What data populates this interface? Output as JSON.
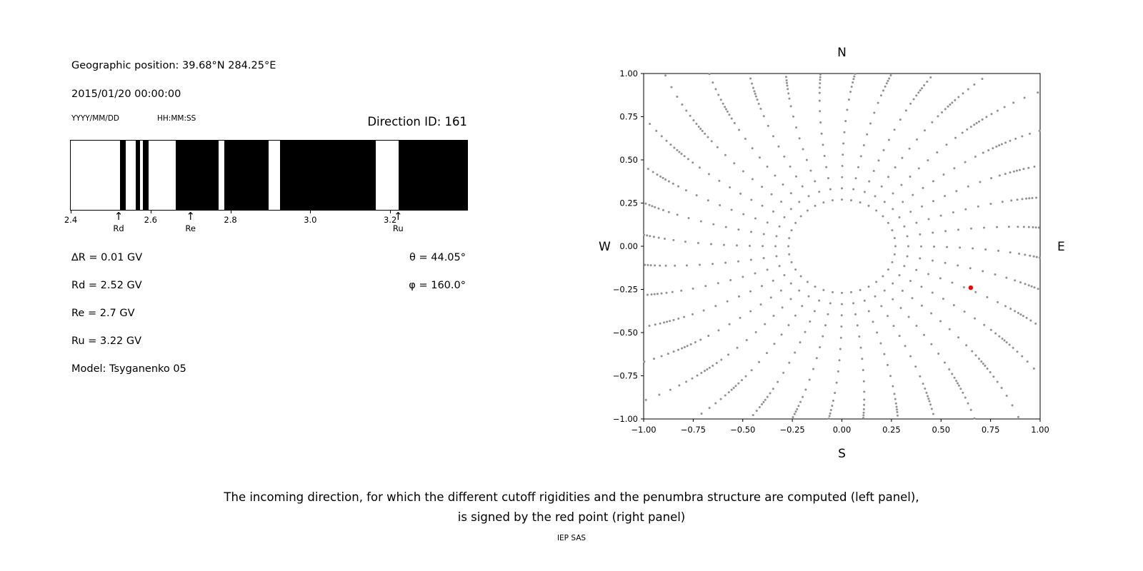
{
  "left_panel": {
    "geo_position": "Geographic position: 39.68°N 284.25°E",
    "datetime": "2015/01/20 00:00:00",
    "date_format_label": "YYYY/MM/DD",
    "time_format_label": "HH:MM:SS",
    "direction_id_label": "Direction ID: 161",
    "delta_r_label": "∆R = 0.01 GV",
    "rd_label": "Rd = 2.52 GV",
    "re_label": "Re = 2.7 GV",
    "ru_label": "Ru = 3.22 GV",
    "model_label": "Model: Tsyganenko 05",
    "theta_label": "θ = 44.05°",
    "phi_label": "φ = 160.0°"
  },
  "caption": {
    "line1": "The incoming direction, for which the different cutoff rigidities and the penumbra structure are computed (left panel),",
    "line2": "is signed by the red point (right panel)",
    "credit": "IEP SAS"
  },
  "chart_data": [
    {
      "name": "penumbra-structure",
      "type": "bar",
      "title": "Penumbra structure (black = forbidden rigidity bands, GV)",
      "x_range": [
        2.4,
        3.393
      ],
      "xticks": [
        2.4,
        2.6,
        2.8,
        3.0,
        3.2
      ],
      "black_intervals": [
        [
          2.523,
          2.538
        ],
        [
          2.563,
          2.574
        ],
        [
          2.581,
          2.595
        ],
        [
          2.663,
          2.77
        ],
        [
          2.785,
          2.896
        ],
        [
          2.924,
          3.164
        ],
        [
          3.221,
          3.393
        ]
      ],
      "markers": [
        {
          "label": "Rd",
          "x": 2.52
        },
        {
          "label": "Re",
          "x": 2.7
        },
        {
          "label": "Ru",
          "x": 3.22
        }
      ],
      "values": {
        "delta_R_GV": 0.01,
        "Rd_GV": 2.52,
        "Re_GV": 2.7,
        "Ru_GV": 3.22,
        "theta_deg": 44.05,
        "phi_deg": 160.0,
        "direction_id": 161,
        "model": "Tsyganenko 05"
      }
    },
    {
      "name": "incoming-direction-map",
      "type": "scatter",
      "xlim": [
        -1,
        1
      ],
      "ylim": [
        -1,
        1
      ],
      "xticks": [
        -1.0,
        -0.75,
        -0.5,
        -0.25,
        0.0,
        0.25,
        0.5,
        0.75,
        1.0
      ],
      "yticks": [
        -1.0,
        -0.75,
        -0.5,
        -0.25,
        0.0,
        0.25,
        0.5,
        0.75,
        1.0
      ],
      "compass": {
        "top": "N",
        "bottom": "S",
        "left": "W",
        "right": "E"
      },
      "grid_dots": {
        "spoke_count": 36,
        "spoke_step_deg": 10,
        "radii": [
          0.27,
          0.335,
          0.4,
          0.465,
          0.53,
          0.595,
          0.66,
          0.725,
          0.79,
          0.85,
          0.895,
          0.925,
          0.95,
          0.97,
          0.985,
          1.0,
          1.02,
          1.045,
          1.075,
          1.11,
          1.15,
          1.2,
          1.26,
          1.33
        ],
        "bend_deg": 8,
        "color": "#919191",
        "dot_radius": 1.5
      },
      "red_point": {
        "x": 0.65,
        "y": -0.24,
        "color": "#ff0000",
        "dot_radius": 3.2
      }
    }
  ]
}
